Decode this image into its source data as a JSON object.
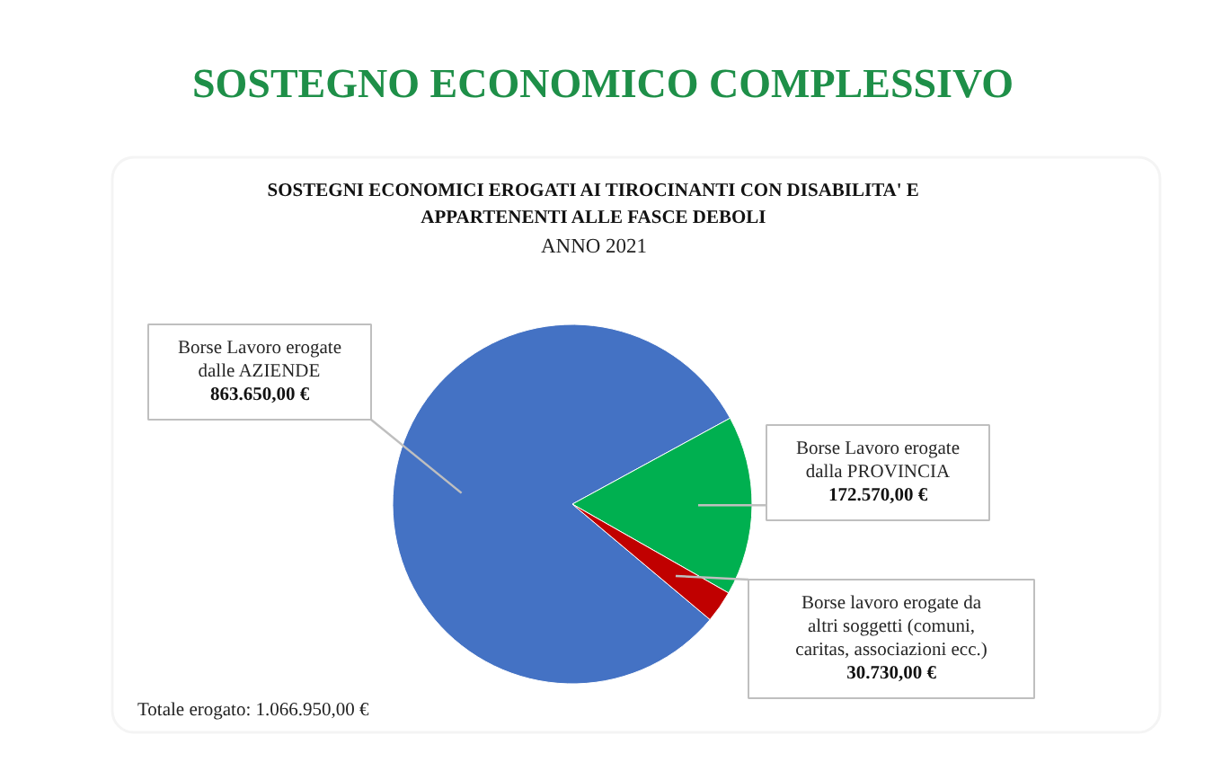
{
  "chart_data": {
    "type": "pie",
    "title": "SOSTEGNO ECONOMICO COMPLESSIVO",
    "subtitle": "SOSTEGNI ECONOMICI EROGATI AI TIROCINANTI CON DISABILITA' E\nAPPARTENENTI ALLE FASCE DEBOLI",
    "annotations": [
      "ANNO 2021",
      "Totale erogato:  1.066.950,00 €"
    ],
    "categories": [
      "Borse Lavoro erogate\ndalle AZIENDE",
      "Borse Lavoro erogate\ndalla PROVINCIA",
      "Borse lavoro erogate da\naltri soggetti (comuni,\ncaritas, associazioni ecc.)"
    ],
    "values": [
      863650.0,
      172570.0,
      30730.0
    ],
    "colors": [
      "#4472c4",
      "#00b050",
      "#c00000"
    ],
    "value_labels": [
      "863.650,00 €",
      "172.570,00 €",
      "30.730,00 €"
    ]
  }
}
